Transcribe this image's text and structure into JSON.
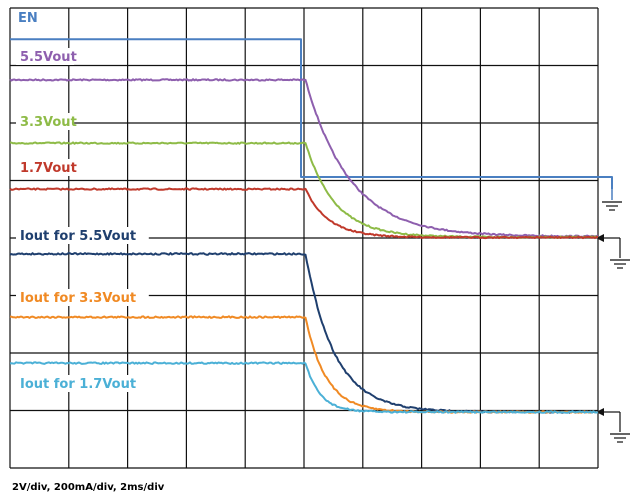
{
  "chart_data": {
    "type": "line",
    "title": "",
    "xlabel": "",
    "ylabel": "",
    "scale_text": "2V/div, 200mA/div, 2ms/div",
    "x_unit": "ms",
    "x_per_div": 2,
    "x_range": [
      0,
      20
    ],
    "divisions": {
      "x": 10,
      "y": 8
    },
    "grid": true,
    "events": {
      "enable_off_ms": 10.0
    },
    "series": [
      {
        "name": "EN",
        "color": "#4a7fc1",
        "quantity": "V",
        "before": 6.8,
        "after": 0.0,
        "tau_ms": 0.0
      },
      {
        "name": "5.5Vout",
        "color": "#8e5fae",
        "quantity": "V",
        "before": 5.5,
        "after": 0.05,
        "tau_ms": 1.5
      },
      {
        "name": "3.3Vout",
        "color": "#8ebb47",
        "quantity": "V",
        "before": 3.3,
        "after": 0.03,
        "tau_ms": 1.0
      },
      {
        "name": "1.7Vout",
        "color": "#c0392b",
        "quantity": "V",
        "before": 1.7,
        "after": 0.02,
        "tau_ms": 0.8
      },
      {
        "name": "Iout for 5.5Vout",
        "color": "#1f3f6e",
        "quantity": "mA",
        "before": 550,
        "after": 0,
        "tau_ms": 1.0
      },
      {
        "name": "Iout for 3.3Vout",
        "color": "#f08a24",
        "quantity": "mA",
        "before": 330,
        "after": 0,
        "tau_ms": 0.7
      },
      {
        "name": "Iout for 1.7Vout",
        "color": "#4bb0d6",
        "quantity": "mA",
        "before": 170,
        "after": 0,
        "tau_ms": 0.5
      }
    ]
  }
}
